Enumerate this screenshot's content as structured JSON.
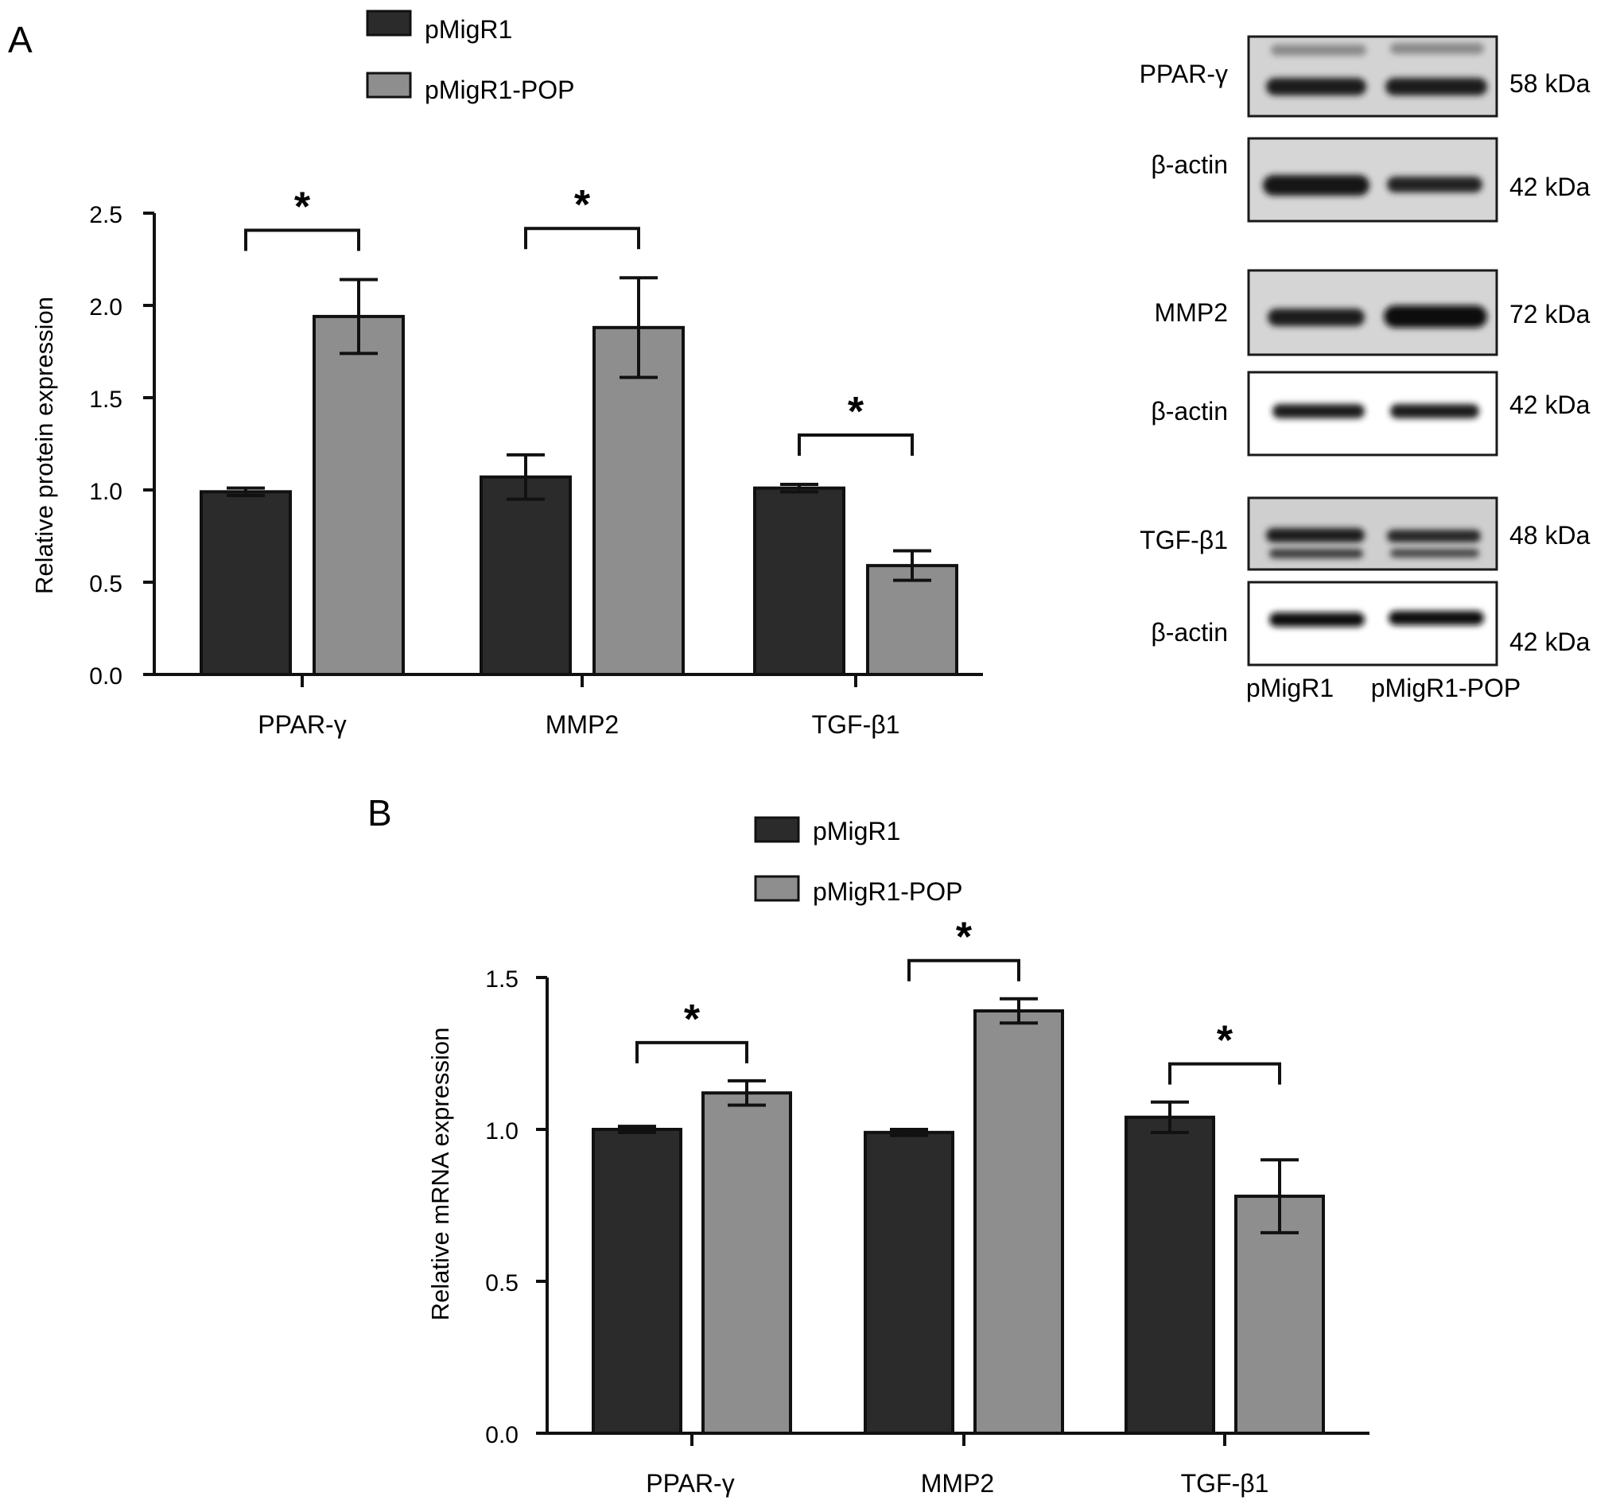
{
  "panels": {
    "a_label": "A",
    "b_label": "B"
  },
  "colors": {
    "pmigr1": "#2b2b2b",
    "pop": "#8e8e8e",
    "axis": "#111111"
  },
  "chart_data": [
    {
      "type": "bar",
      "panel": "A",
      "categories": [
        "PPAR-γ",
        "MMP2",
        "TGF-β1"
      ],
      "series": [
        {
          "name": "pMigR1",
          "values": [
            0.99,
            1.07,
            1.01
          ],
          "errors": [
            0.02,
            0.12,
            0.02
          ]
        },
        {
          "name": "pMigR1-POP",
          "values": [
            1.94,
            1.88,
            0.59
          ],
          "errors": [
            0.2,
            0.27,
            0.08
          ]
        }
      ],
      "significance": [
        "*",
        "*",
        "*"
      ],
      "ylabel": "Relative protein expression",
      "ylim": [
        0,
        2.5
      ],
      "yticks": [
        "0.0",
        "0.5",
        "1.0",
        "1.5",
        "2.0",
        "2.5"
      ],
      "legend": "top-left"
    },
    {
      "type": "bar",
      "panel": "B",
      "categories": [
        "PPAR-γ",
        "MMP2",
        "TGF-β1"
      ],
      "series": [
        {
          "name": "pMigR1",
          "values": [
            1.0,
            0.99,
            1.04
          ],
          "errors": [
            0.01,
            0.01,
            0.05
          ]
        },
        {
          "name": "pMigR1-POP",
          "values": [
            1.12,
            1.39,
            0.78
          ],
          "errors": [
            0.04,
            0.04,
            0.12
          ]
        }
      ],
      "significance": [
        "*",
        "*",
        "*"
      ],
      "ylabel": "Relative mRNA expression",
      "ylim": [
        0,
        1.5
      ],
      "yticks": [
        "0.0",
        "0.5",
        "1.0",
        "1.5"
      ],
      "legend": "top-left"
    }
  ],
  "blot": {
    "rows": [
      {
        "protein": "PPAR-γ",
        "kda": "58 kDa"
      },
      {
        "protein": "β-actin",
        "kda": "42 kDa"
      },
      {
        "protein": "MMP2",
        "kda": "72 kDa"
      },
      {
        "protein": "β-actin",
        "kda": "42 kDa"
      },
      {
        "protein": "TGF-β1",
        "kda": "48 kDa"
      },
      {
        "protein": "β-actin",
        "kda": "42 kDa"
      }
    ],
    "lanes": [
      "pMigR1",
      "pMigR1-POP"
    ]
  }
}
